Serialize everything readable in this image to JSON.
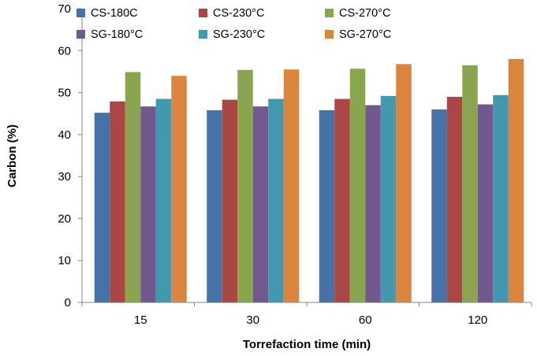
{
  "chart_data": {
    "type": "bar",
    "title": "",
    "xlabel": "Torrefaction time (min)",
    "ylabel": "Carbon (%)",
    "ylim": [
      0,
      70
    ],
    "yticks": [
      0,
      10,
      20,
      30,
      40,
      50,
      60,
      70
    ],
    "grid": false,
    "legend_position": "top",
    "categories": [
      "15",
      "30",
      "60",
      "120"
    ],
    "series": [
      {
        "name": "CS-180C",
        "color": "#4572a7",
        "values": [
          45.2,
          45.8,
          45.8,
          46.0
        ]
      },
      {
        "name": "CS-230°C",
        "color": "#aa4643",
        "values": [
          47.9,
          48.3,
          48.5,
          49.0
        ]
      },
      {
        "name": "CS-270°C",
        "color": "#89a54e",
        "values": [
          54.9,
          55.4,
          55.7,
          56.5
        ]
      },
      {
        "name": "SG-180°C",
        "color": "#71588f",
        "values": [
          46.7,
          46.7,
          47.0,
          47.2
        ]
      },
      {
        "name": "SG-230°C",
        "color": "#4198af",
        "values": [
          48.5,
          48.5,
          49.2,
          49.4
        ]
      },
      {
        "name": "SG-270°C",
        "color": "#db843d",
        "values": [
          54.0,
          55.5,
          56.8,
          58.0
        ]
      }
    ]
  }
}
